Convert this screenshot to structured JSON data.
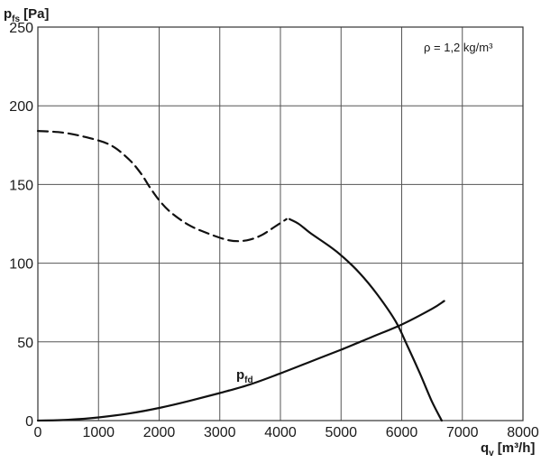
{
  "chart_data": {
    "type": "line",
    "title": "",
    "xlabel": {
      "base": "q",
      "sub": "v",
      "unit": "[m³/h]"
    },
    "ylabel": {
      "base": "p",
      "sub": "fs",
      "unit": "[Pa]"
    },
    "xlim": [
      0,
      8000
    ],
    "ylim": [
      0,
      250
    ],
    "x_ticks": [
      0,
      1000,
      2000,
      3000,
      4000,
      5000,
      6000,
      7000,
      8000
    ],
    "y_ticks": [
      0,
      50,
      100,
      150,
      200,
      250
    ],
    "grid": true,
    "annotation": "ρ = 1,2 kg/m³",
    "series": [
      {
        "style": "dashed",
        "x": [
          0,
          400,
          800,
          1200,
          1500,
          1700,
          1850,
          2000,
          2200,
          2500,
          2800,
          3100,
          3300,
          3500,
          3700,
          3900,
          4100
        ],
        "y": [
          184,
          183,
          180,
          175,
          166,
          157,
          148,
          140,
          132,
          124,
          119,
          115,
          114,
          115,
          118,
          123,
          128
        ]
      },
      {
        "style": "solid",
        "x": [
          4150,
          4300,
          4500,
          4800,
          5000,
          5300,
          5600,
          5900,
          6100,
          6300,
          6500,
          6660
        ],
        "y": [
          128,
          125,
          119,
          111,
          105,
          94,
          80,
          63,
          47,
          30,
          12,
          0
        ]
      },
      {
        "name_base": "p",
        "name_sub": "fd",
        "style": "solid",
        "x": [
          0,
          500,
          1000,
          1500,
          2000,
          2500,
          3000,
          3500,
          4000,
          4500,
          5000,
          5500,
          6000,
          6500,
          6700
        ],
        "y": [
          0,
          0.5,
          2,
          4.5,
          8,
          12.5,
          17.5,
          23,
          30,
          37.5,
          45,
          53,
          61,
          71,
          76
        ]
      }
    ]
  }
}
